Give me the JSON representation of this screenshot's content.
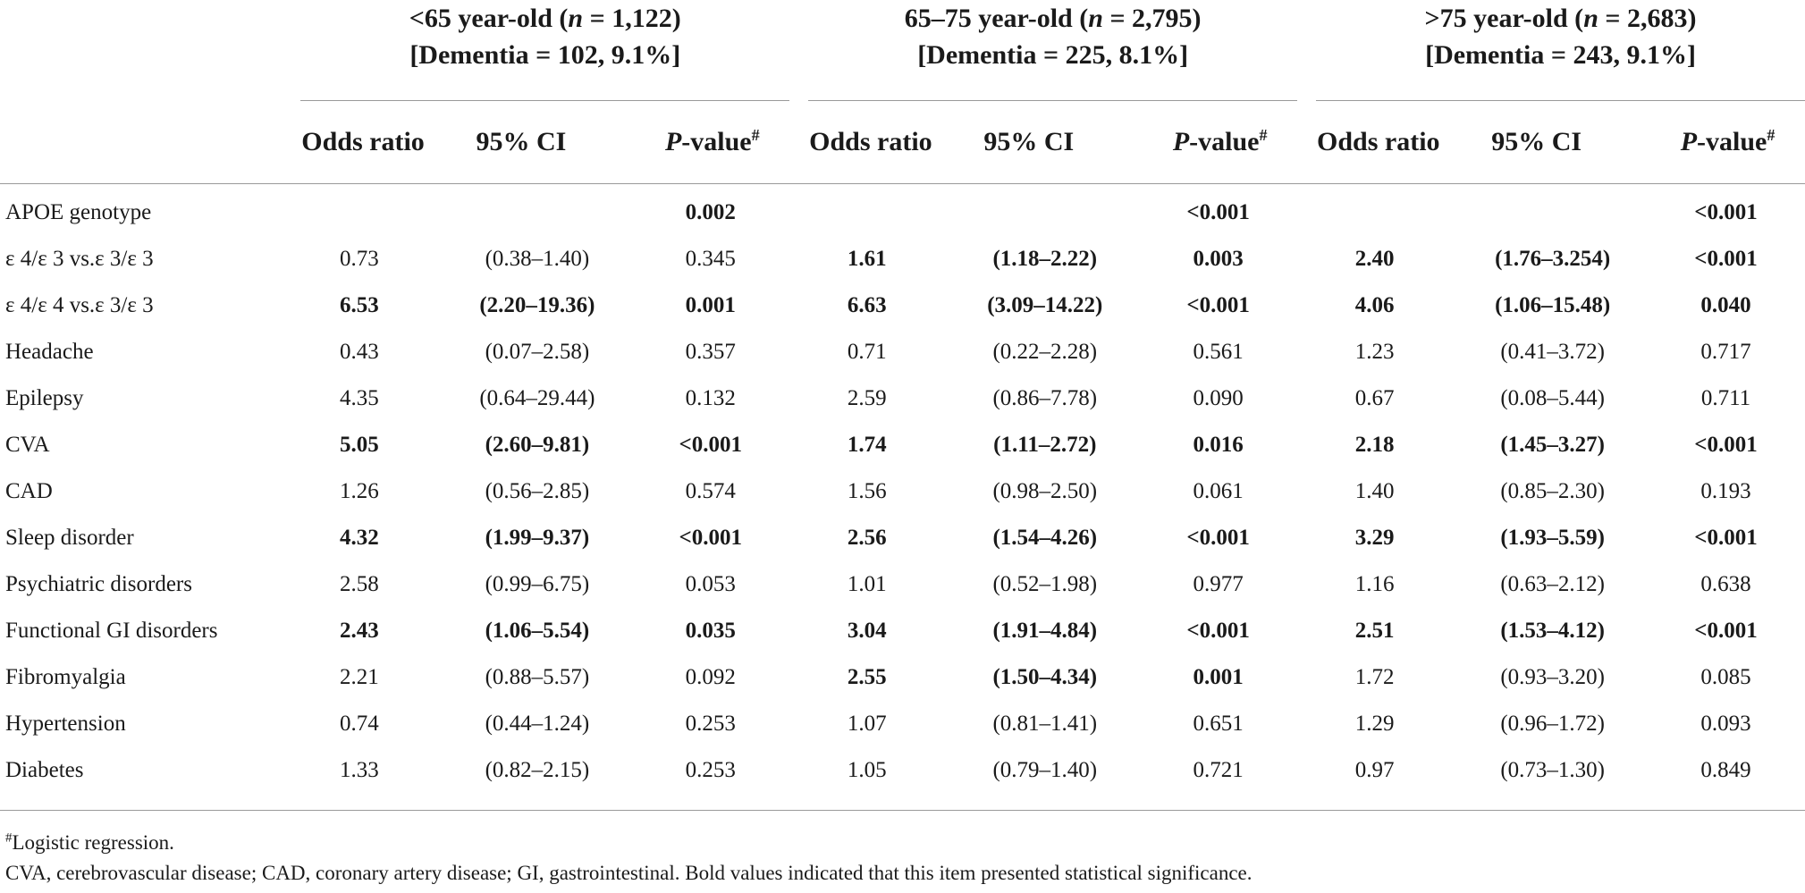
{
  "groups": [
    {
      "lt": "<",
      "label": "65 year-old (",
      "n_sym": "n",
      "n_val": " = 1,122)",
      "dementia": "[Dementia = 102, 9.1%]"
    },
    {
      "lt": "",
      "label": "65–75 year-old (",
      "n_sym": "n",
      "n_val": " = 2,795)",
      "dementia": "[Dementia = 225, 8.1%]"
    },
    {
      "lt": ">",
      "label": "75 year-old (",
      "n_sym": "n",
      "n_val": " = 2,683)",
      "dementia": "[Dementia = 243, 9.1%]"
    }
  ],
  "columns": {
    "odds_ratio": "Odds ratio",
    "ci": "95% CI",
    "p_italic": "P",
    "p_rest": "-value",
    "p_mark": "#"
  },
  "rows": [
    {
      "label": "APOE genotype",
      "g": [
        {
          "or": "",
          "ci": "",
          "p": "0.002",
          "bold": [
            false,
            false,
            true
          ]
        },
        {
          "or": "",
          "ci": "",
          "p": "<0.001",
          "bold": [
            false,
            false,
            true
          ]
        },
        {
          "or": "",
          "ci": "",
          "p": "<0.001",
          "bold": [
            false,
            false,
            true
          ]
        }
      ]
    },
    {
      "label": "ε 4/ε 3 vs.ε 3/ε 3",
      "g": [
        {
          "or": "0.73",
          "ci": "(0.38–1.40)",
          "p": "0.345",
          "bold": [
            false,
            false,
            false
          ]
        },
        {
          "or": "1.61",
          "ci": "(1.18–2.22)",
          "p": "0.003",
          "bold": [
            true,
            true,
            true
          ]
        },
        {
          "or": "2.40",
          "ci": "(1.76–3.254)",
          "p": "<0.001",
          "bold": [
            true,
            true,
            true
          ]
        }
      ]
    },
    {
      "label": "ε 4/ε 4 vs.ε 3/ε 3",
      "g": [
        {
          "or": "6.53",
          "ci": "(2.20–19.36)",
          "p": "0.001",
          "bold": [
            true,
            true,
            true
          ]
        },
        {
          "or": "6.63",
          "ci": "(3.09–14.22)",
          "p": "<0.001",
          "bold": [
            true,
            true,
            true
          ]
        },
        {
          "or": "4.06",
          "ci": "(1.06–15.48)",
          "p": "0.040",
          "bold": [
            true,
            true,
            true
          ]
        }
      ]
    },
    {
      "label": "Headache",
      "g": [
        {
          "or": "0.43",
          "ci": "(0.07–2.58)",
          "p": "0.357",
          "bold": [
            false,
            false,
            false
          ]
        },
        {
          "or": "0.71",
          "ci": "(0.22–2.28)",
          "p": "0.561",
          "bold": [
            false,
            false,
            false
          ]
        },
        {
          "or": "1.23",
          "ci": "(0.41–3.72)",
          "p": "0.717",
          "bold": [
            false,
            false,
            false
          ]
        }
      ]
    },
    {
      "label": "Epilepsy",
      "g": [
        {
          "or": "4.35",
          "ci": "(0.64–29.44)",
          "p": "0.132",
          "bold": [
            false,
            false,
            false
          ]
        },
        {
          "or": "2.59",
          "ci": "(0.86–7.78)",
          "p": "0.090",
          "bold": [
            false,
            false,
            false
          ]
        },
        {
          "or": "0.67",
          "ci": "(0.08–5.44)",
          "p": "0.711",
          "bold": [
            false,
            false,
            false
          ]
        }
      ]
    },
    {
      "label": "CVA",
      "g": [
        {
          "or": "5.05",
          "ci": "(2.60–9.81)",
          "p": "<0.001",
          "bold": [
            true,
            true,
            true
          ]
        },
        {
          "or": "1.74",
          "ci": "(1.11–2.72)",
          "p": "0.016",
          "bold": [
            true,
            true,
            true
          ]
        },
        {
          "or": "2.18",
          "ci": "(1.45–3.27)",
          "p": "<0.001",
          "bold": [
            true,
            true,
            true
          ]
        }
      ]
    },
    {
      "label": "CAD",
      "g": [
        {
          "or": "1.26",
          "ci": "(0.56–2.85)",
          "p": "0.574",
          "bold": [
            false,
            false,
            false
          ]
        },
        {
          "or": "1.56",
          "ci": "(0.98–2.50)",
          "p": "0.061",
          "bold": [
            false,
            false,
            false
          ]
        },
        {
          "or": "1.40",
          "ci": "(0.85–2.30)",
          "p": "0.193",
          "bold": [
            false,
            false,
            false
          ]
        }
      ]
    },
    {
      "label": "Sleep disorder",
      "g": [
        {
          "or": "4.32",
          "ci": "(1.99–9.37)",
          "p": "<0.001",
          "bold": [
            true,
            true,
            true
          ]
        },
        {
          "or": "2.56",
          "ci": "(1.54–4.26)",
          "p": "<0.001",
          "bold": [
            true,
            true,
            true
          ]
        },
        {
          "or": "3.29",
          "ci": "(1.93–5.59)",
          "p": "<0.001",
          "bold": [
            true,
            true,
            true
          ]
        }
      ]
    },
    {
      "label": "Psychiatric disorders",
      "g": [
        {
          "or": "2.58",
          "ci": "(0.99–6.75)",
          "p": "0.053",
          "bold": [
            false,
            false,
            false
          ]
        },
        {
          "or": "1.01",
          "ci": "(0.52–1.98)",
          "p": "0.977",
          "bold": [
            false,
            false,
            false
          ]
        },
        {
          "or": "1.16",
          "ci": "(0.63–2.12)",
          "p": "0.638",
          "bold": [
            false,
            false,
            false
          ]
        }
      ]
    },
    {
      "label": "Functional GI disorders",
      "g": [
        {
          "or": "2.43",
          "ci": "(1.06–5.54)",
          "p": "0.035",
          "bold": [
            true,
            true,
            true
          ]
        },
        {
          "or": "3.04",
          "ci": "(1.91–4.84)",
          "p": "<0.001",
          "bold": [
            true,
            true,
            true
          ]
        },
        {
          "or": "2.51",
          "ci": "(1.53–4.12)",
          "p": "<0.001",
          "bold": [
            true,
            true,
            true
          ]
        }
      ]
    },
    {
      "label": "Fibromyalgia",
      "g": [
        {
          "or": "2.21",
          "ci": "(0.88–5.57)",
          "p": "0.092",
          "bold": [
            false,
            false,
            false
          ]
        },
        {
          "or": "2.55",
          "ci": "(1.50–4.34)",
          "p": "0.001",
          "bold": [
            true,
            true,
            true
          ]
        },
        {
          "or": "1.72",
          "ci": "(0.93–3.20)",
          "p": "0.085",
          "bold": [
            false,
            false,
            false
          ]
        }
      ]
    },
    {
      "label": "Hypertension",
      "g": [
        {
          "or": "0.74",
          "ci": "(0.44–1.24)",
          "p": "0.253",
          "bold": [
            false,
            false,
            false
          ]
        },
        {
          "or": "1.07",
          "ci": "(0.81–1.41)",
          "p": "0.651",
          "bold": [
            false,
            false,
            false
          ]
        },
        {
          "or": "1.29",
          "ci": "(0.96–1.72)",
          "p": "0.093",
          "bold": [
            false,
            false,
            false
          ]
        }
      ]
    },
    {
      "label": "Diabetes",
      "g": [
        {
          "or": "1.33",
          "ci": "(0.82–2.15)",
          "p": "0.253",
          "bold": [
            false,
            false,
            false
          ]
        },
        {
          "or": "1.05",
          "ci": "(0.79–1.40)",
          "p": "0.721",
          "bold": [
            false,
            false,
            false
          ]
        },
        {
          "or": "0.97",
          "ci": "(0.73–1.30)",
          "p": "0.849",
          "bold": [
            false,
            false,
            false
          ]
        }
      ]
    }
  ],
  "footnotes": {
    "mark": "#",
    "note1": "Logistic regression.",
    "note2": "CVA, cerebrovascular disease; CAD, coronary artery disease; GI, gastrointestinal. Bold values indicated that this item presented statistical significance."
  }
}
